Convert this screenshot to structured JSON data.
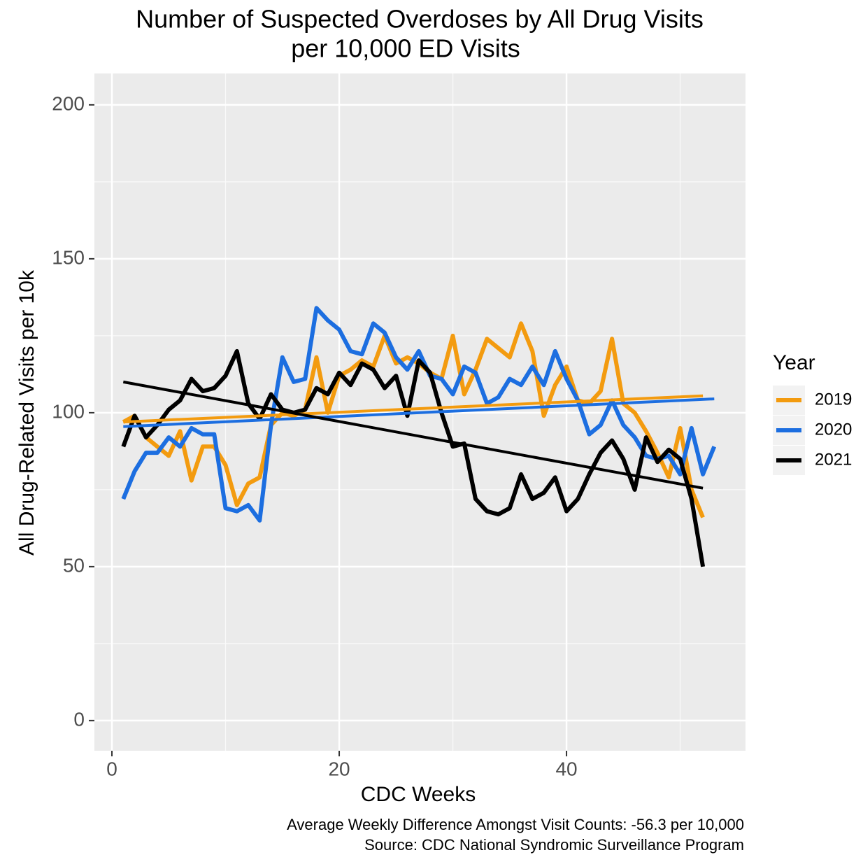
{
  "chart_data": {
    "type": "line",
    "title": [
      "Number of Suspected Overdoses by All Drug Visits",
      "per 10,000 ED Visits"
    ],
    "x_label": "CDC Weeks",
    "y_label": "All Drug-Related Visits per 10k",
    "caption": [
      "Average Weekly Difference Amongst Visit Counts: -56.3 per 10,000",
      "Source: CDC National Syndromic Surveillance Program"
    ],
    "legend_title": "Year",
    "legend_position": "right",
    "grid": true,
    "xlim": [
      -1.54,
      55.75
    ],
    "ylim": [
      -9.8,
      210.2
    ],
    "xticks": [
      0,
      20,
      40
    ],
    "yticks": [
      0,
      50,
      100,
      150,
      200
    ],
    "xminor": [
      10,
      30,
      50
    ],
    "yminor": [
      25,
      75,
      125,
      175
    ],
    "series": [
      {
        "name": "2019",
        "color": "#f39b0f",
        "x": [
          1,
          2,
          3,
          4,
          5,
          6,
          7,
          8,
          9,
          10,
          11,
          12,
          13,
          14,
          15,
          16,
          17,
          18,
          19,
          20,
          21,
          22,
          23,
          24,
          25,
          26,
          27,
          28,
          29,
          30,
          31,
          32,
          33,
          34,
          35,
          36,
          37,
          38,
          39,
          40,
          41,
          42,
          43,
          44,
          45,
          46,
          47,
          48,
          49,
          50,
          51,
          52
        ],
        "values": [
          97,
          99,
          92,
          89,
          86,
          94,
          78,
          89,
          89,
          83,
          70,
          77,
          79,
          96,
          100,
          99,
          101,
          118,
          100,
          112,
          114,
          117,
          115,
          125,
          116,
          118,
          116,
          113,
          111,
          125,
          106,
          114,
          124,
          121,
          118,
          129,
          120,
          99,
          109,
          115,
          104,
          103,
          107,
          124,
          103,
          100,
          94,
          87,
          79,
          95,
          75,
          66
        ],
        "trend": {
          "x": [
            1,
            52
          ],
          "values": [
            97,
            105.5
          ]
        }
      },
      {
        "name": "2020",
        "color": "#1c6ee0",
        "x": [
          1,
          2,
          3,
          4,
          5,
          6,
          7,
          8,
          9,
          10,
          11,
          12,
          13,
          14,
          15,
          16,
          17,
          18,
          19,
          20,
          21,
          22,
          23,
          24,
          25,
          26,
          27,
          28,
          29,
          30,
          31,
          32,
          33,
          34,
          35,
          36,
          37,
          38,
          39,
          40,
          41,
          42,
          43,
          44,
          45,
          46,
          47,
          48,
          49,
          50,
          51,
          52,
          53
        ],
        "values": [
          72,
          81,
          87,
          87,
          92,
          89,
          95,
          93,
          93,
          69,
          68,
          70,
          65,
          96,
          118,
          110,
          111,
          134,
          130,
          127,
          120,
          119,
          129,
          126,
          118,
          114,
          120,
          112,
          111,
          106,
          115,
          113,
          103,
          105,
          111,
          109,
          115,
          109,
          120,
          111,
          104,
          93,
          96,
          104,
          96,
          92,
          86,
          85,
          86,
          80,
          95,
          80,
          89
        ],
        "trend": {
          "x": [
            1,
            53
          ],
          "values": [
            95.5,
            104.5
          ]
        }
      },
      {
        "name": "2021",
        "color": "#000000",
        "x": [
          1,
          2,
          3,
          4,
          5,
          6,
          7,
          8,
          9,
          10,
          11,
          12,
          13,
          14,
          15,
          16,
          17,
          18,
          19,
          20,
          21,
          22,
          23,
          24,
          25,
          26,
          27,
          28,
          29,
          30,
          31,
          32,
          33,
          34,
          35,
          36,
          37,
          38,
          39,
          40,
          41,
          42,
          43,
          44,
          45,
          46,
          47,
          48,
          49,
          50,
          51,
          52
        ],
        "values": [
          89,
          99,
          92,
          96,
          101,
          104,
          111,
          107,
          108,
          112,
          120,
          103,
          98,
          106,
          101,
          100,
          101,
          108,
          106,
          113,
          109,
          116,
          114,
          108,
          112,
          99,
          117,
          113,
          100,
          89,
          90,
          72,
          68,
          67,
          69,
          80,
          72,
          74,
          79,
          68,
          72,
          80,
          87,
          91,
          85,
          75,
          92,
          84,
          88,
          85,
          72,
          50
        ],
        "trend": {
          "x": [
            1,
            52
          ],
          "values": [
            110,
            75.5
          ]
        }
      }
    ]
  }
}
